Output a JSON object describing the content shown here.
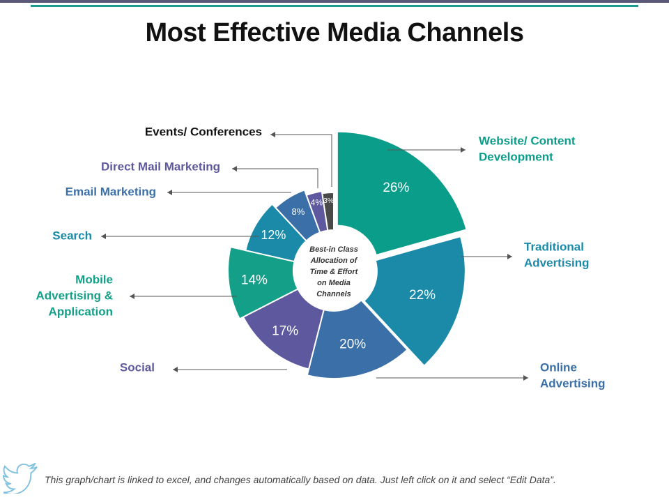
{
  "title": "Most Effective Media Channels",
  "center_text": [
    "Best-in Class",
    "Allocation of",
    "Time & Effort",
    "on Media",
    "Channels"
  ],
  "footer_note": "This graph/chart is linked to excel, and changes automatically based on data. Just left click on it and select “Edit Data”.",
  "footer_icon": "twitter-bird-icon",
  "colors": {
    "teal": "#0a9e8a",
    "blue_teal": "#1a8aa8",
    "blue": "#3a6fa8",
    "purple": "#5e589e",
    "green_teal": "#14a088",
    "dark_gray": "#4a4a4a",
    "title": "#111111",
    "line": "#555555"
  },
  "chart_data": {
    "type": "pie",
    "variant": "donut-exploded",
    "title": "Most Effective Media Channels",
    "slices": [
      {
        "label": "Website/ Content Development",
        "value": 26,
        "display": "26%",
        "color": "#0a9e8a",
        "label_lines": [
          "Website/ Content",
          "Development"
        ]
      },
      {
        "label": "Traditional Advertising",
        "value": 22,
        "display": "22%",
        "color": "#1a8aa8",
        "label_lines": [
          "Traditional",
          "Advertising"
        ]
      },
      {
        "label": "Online Advertising",
        "value": 20,
        "display": "20%",
        "color": "#3a6fa8",
        "label_lines": [
          "Online",
          "Advertising"
        ]
      },
      {
        "label": "Social",
        "value": 17,
        "display": "17%",
        "color": "#5e589e",
        "label_lines": [
          "Social"
        ]
      },
      {
        "label": "Mobile Advertising & Application",
        "value": 14,
        "display": "14%",
        "color": "#14a088",
        "label_lines": [
          "Mobile",
          "Advertising &",
          "Application"
        ]
      },
      {
        "label": "Search",
        "value": 12,
        "display": "12%",
        "color": "#1a8aa8",
        "label_lines": [
          "Search"
        ]
      },
      {
        "label": "Email Marketing",
        "value": 8,
        "display": "8%",
        "color": "#3a6fa8",
        "label_lines": [
          "Email Marketing"
        ]
      },
      {
        "label": "Direct Mail Marketing",
        "value": 4,
        "display": "4%",
        "color": "#5e589e",
        "label_lines": [
          "Direct Mail Marketing"
        ]
      },
      {
        "label": "Events/ Conferences",
        "value": 3,
        "display": "3%",
        "color": "#4a4a4a",
        "label_lines": [
          "Events/ Conferences"
        ]
      }
    ],
    "legend": "none"
  }
}
